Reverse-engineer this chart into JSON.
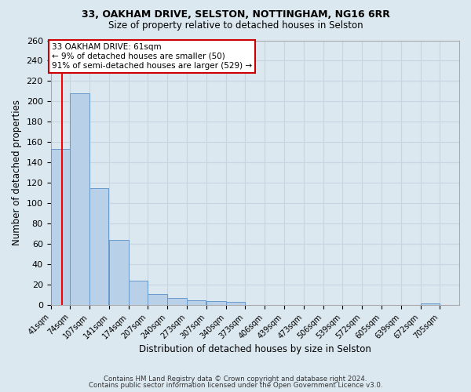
{
  "title1": "33, OAKHAM DRIVE, SELSTON, NOTTINGHAM, NG16 6RR",
  "title2": "Size of property relative to detached houses in Selston",
  "xlabel": "Distribution of detached houses by size in Selston",
  "ylabel": "Number of detached properties",
  "bins": [
    41,
    74,
    107,
    141,
    174,
    207,
    240,
    273,
    307,
    340,
    373,
    406,
    439,
    473,
    506,
    539,
    572,
    605,
    639,
    672,
    705
  ],
  "bin_width": 33,
  "counts": [
    153,
    208,
    115,
    64,
    24,
    11,
    7,
    5,
    4,
    3,
    0,
    0,
    0,
    0,
    0,
    0,
    0,
    0,
    0,
    2,
    0
  ],
  "bar_color": "#b8d0e8",
  "bar_edge_color": "#6699cc",
  "red_line_x": 61,
  "annotation_text": "33 OAKHAM DRIVE: 61sqm\n← 9% of detached houses are smaller (50)\n91% of semi-detached houses are larger (529) →",
  "annotation_box_color": "white",
  "annotation_box_edge_color": "#cc0000",
  "ylim": [
    0,
    260
  ],
  "yticks": [
    0,
    20,
    40,
    60,
    80,
    100,
    120,
    140,
    160,
    180,
    200,
    220,
    240,
    260
  ],
  "grid_color": "#c8d4e0",
  "bg_color": "#dce8f0",
  "footer1": "Contains HM Land Registry data © Crown copyright and database right 2024.",
  "footer2": "Contains public sector information licensed under the Open Government Licence v3.0."
}
